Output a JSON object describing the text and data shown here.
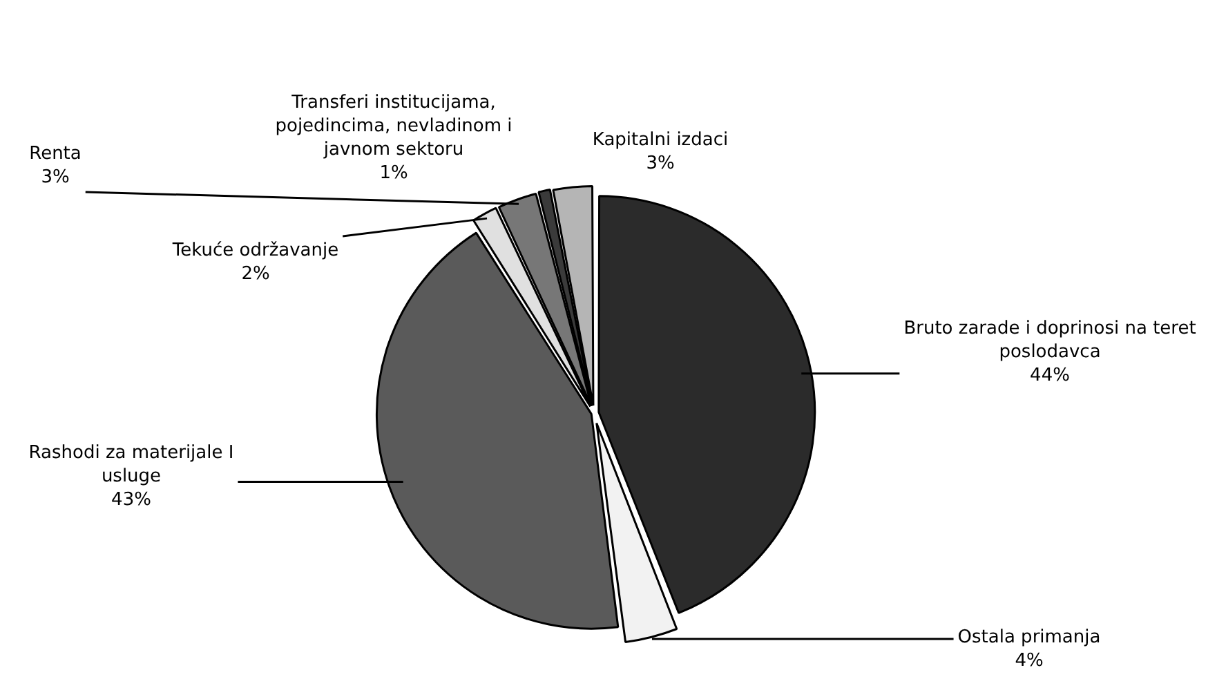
{
  "chart_data": {
    "type": "pie",
    "categories": [
      "Bruto zarade i doprinosi na teret poslodavca",
      "Ostala primanja",
      "Rashodi za materijale I usluge",
      "Tekuće održavanje",
      "Renta",
      "Transferi institucijama, pojedincima, nevladinom i javnom sektoru",
      "Kapitalni izdaci"
    ],
    "values": [
      44,
      4,
      43,
      2,
      3,
      1,
      3
    ],
    "colors": [
      "#2b2b2b",
      "#f2f2f2",
      "#5a5a5a",
      "#e0e0e0",
      "#777777",
      "#3a3a3a",
      "#b5b5b5"
    ],
    "value_labels": [
      "44%",
      "4%",
      "43%",
      "2%",
      "3%",
      "1%",
      "3%"
    ],
    "legend": false
  }
}
